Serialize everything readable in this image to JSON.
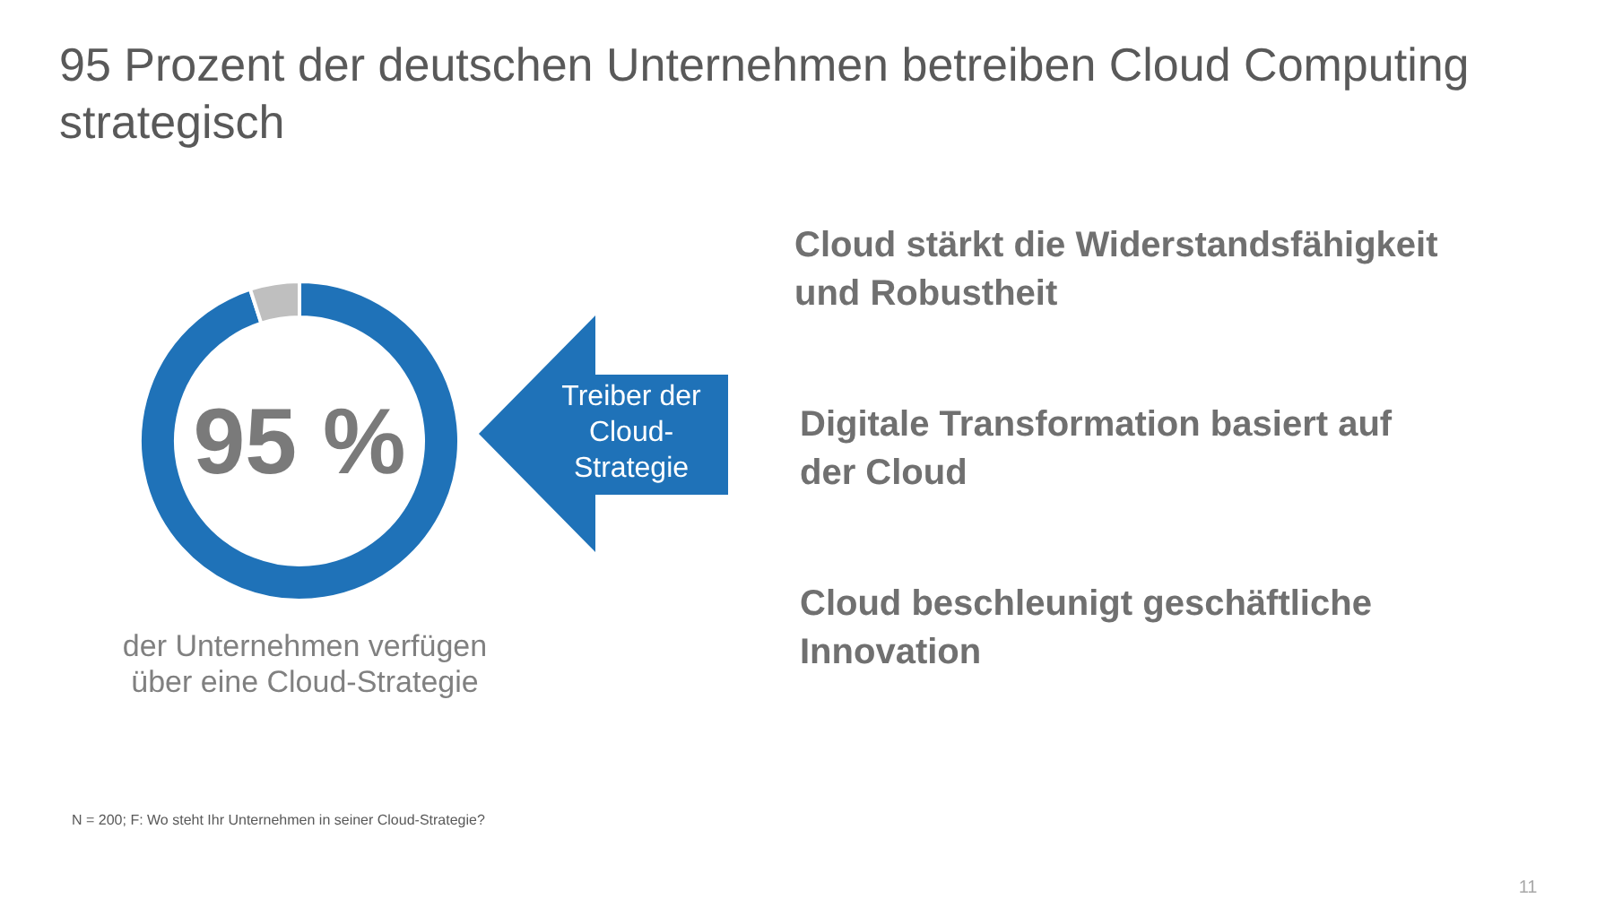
{
  "chart_data": {
    "type": "donut",
    "title": "95 Prozent der deutschen Unternehmen betreiben Cloud Computing strategisch",
    "categories": [
      null,
      null
    ],
    "values": [
      95,
      5
    ],
    "colors": [
      "#1f72b8",
      "#bfbfbf"
    ],
    "value_labels": [
      "95 %",
      null
    ],
    "annotations": [
      "der Unternehmen verfügen über eine Cloud-Strategie",
      "Treiber der Cloud-Strategie",
      "Cloud stärkt die Widerstandsfähigkeit und Robustheit",
      "Digitale Transformation basiert auf der Cloud",
      "Cloud beschleunigt geschäftliche Innovation",
      "N = 200; F: Wo steht Ihr Unternehmen in seiner Cloud-Strategie?",
      "11"
    ]
  }
}
